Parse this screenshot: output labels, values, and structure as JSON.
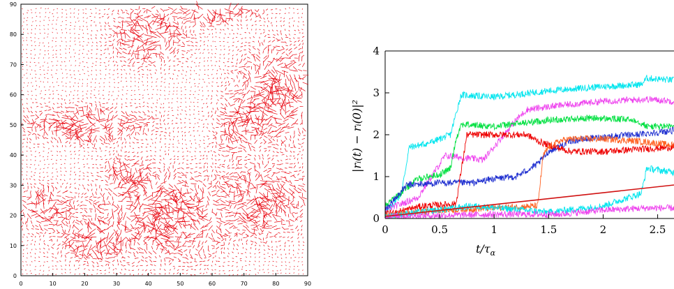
{
  "chart_data": [
    {
      "type": "scatter",
      "title": "",
      "xlabel": "",
      "ylabel": "",
      "xlim": [
        0,
        90
      ],
      "ylim": [
        0,
        90
      ],
      "xticks": [
        "0",
        "10",
        "20",
        "30",
        "40",
        "50",
        "60",
        "70",
        "80",
        "90"
      ],
      "yticks": [
        "0",
        "10",
        "20",
        "30",
        "40",
        "50",
        "60",
        "70",
        "80",
        "90"
      ],
      "color": "#e8000b",
      "description_visible": "vector field of short red arrows; long arrows cluster in bands around y≈45–55 (x 0–40), the upper-middle region (x 40–70, y 70–90), the right side (x 60–90, y 20–70) and the lower-middle region (x 15–75, y 0–35)"
    },
    {
      "type": "line",
      "title": "",
      "xlabel": "t/τ_α",
      "ylabel": "|r_i(t) − r_i(0)|²",
      "xlim": [
        0,
        2.65
      ],
      "ylim": [
        0,
        4
      ],
      "xticks": [
        "0",
        "0.5",
        "1",
        "1.5",
        "2",
        "2.5"
      ],
      "yticks": [
        "0",
        "1",
        "2",
        "3",
        "4"
      ],
      "series": [
        {
          "color": "#00e5ee",
          "x": [
            0,
            0.15,
            0.22,
            0.4,
            0.6,
            0.68,
            0.7,
            1.0,
            1.5,
            2.0,
            2.35,
            2.4,
            2.65
          ],
          "values": [
            0.1,
            0.6,
            1.7,
            1.8,
            2.0,
            2.8,
            2.95,
            2.9,
            3.05,
            3.15,
            3.2,
            3.35,
            3.3
          ]
        },
        {
          "color": "#ee44ee",
          "x": [
            0,
            0.3,
            0.55,
            0.9,
            1.2,
            1.3,
            1.6,
            2.0,
            2.4,
            2.65
          ],
          "values": [
            0.2,
            0.5,
            1.5,
            1.4,
            2.35,
            2.6,
            2.7,
            2.8,
            2.85,
            2.8
          ]
        },
        {
          "color": "#00e040",
          "x": [
            0,
            0.3,
            0.5,
            0.6,
            0.65,
            0.7,
            1.0,
            1.5,
            1.9,
            2.3,
            2.4,
            2.65
          ],
          "values": [
            0.3,
            0.95,
            1.05,
            1.2,
            1.9,
            2.25,
            2.2,
            2.35,
            2.4,
            2.35,
            2.2,
            2.2
          ]
        },
        {
          "color": "#2030d0",
          "x": [
            0,
            0.2,
            0.5,
            0.8,
            1.0,
            1.2,
            1.4,
            1.5,
            1.7,
            2.0,
            2.3,
            2.65
          ],
          "values": [
            0.2,
            0.8,
            0.85,
            0.85,
            0.95,
            1.0,
            1.3,
            1.6,
            1.85,
            1.95,
            2.0,
            2.1
          ]
        },
        {
          "color": "#ee0000",
          "x": [
            0,
            0.35,
            0.65,
            0.75,
            1.0,
            1.3,
            1.4,
            1.5,
            1.7,
            2.0,
            2.3,
            2.65
          ],
          "values": [
            0.1,
            0.3,
            0.35,
            2.0,
            2.0,
            2.0,
            1.85,
            1.75,
            1.6,
            1.6,
            1.65,
            1.7
          ]
        },
        {
          "color": "#ff6020",
          "x": [
            0,
            0.5,
            1.0,
            1.4,
            1.45,
            1.5,
            1.6,
            1.7,
            2.0,
            2.3,
            2.65
          ],
          "values": [
            0.05,
            0.2,
            0.25,
            0.3,
            1.5,
            1.7,
            1.85,
            1.9,
            1.9,
            1.85,
            1.75
          ]
        },
        {
          "color": "#00e5ee",
          "x": [
            0,
            0.8,
            1.5,
            2.0,
            2.35,
            2.4,
            2.65
          ],
          "values": [
            0.05,
            0.3,
            0.15,
            0.3,
            0.6,
            1.2,
            1.1
          ]
        },
        {
          "color": "#ee44ee",
          "x": [
            0,
            1.0,
            1.6,
            2.0,
            2.4,
            2.65
          ],
          "values": [
            0.05,
            0.1,
            0.1,
            0.2,
            0.25,
            0.25
          ]
        },
        {
          "color": "#d01010",
          "x": [
            0,
            2.65
          ],
          "values": [
            0.05,
            0.8
          ]
        }
      ]
    }
  ],
  "left_plot": {
    "xticks": [
      "0",
      "10",
      "20",
      "30",
      "40",
      "50",
      "60",
      "70",
      "80",
      "90"
    ],
    "yticks": [
      "0",
      "10",
      "20",
      "30",
      "40",
      "50",
      "60",
      "70",
      "80",
      "90"
    ]
  },
  "right_plot": {
    "xticks": [
      "0",
      "0.5",
      "1",
      "1.5",
      "2",
      "2.5"
    ],
    "yticks": [
      "0",
      "1",
      "2",
      "3",
      "4"
    ],
    "xlabel_main": "t/τ",
    "xlabel_sub": "α",
    "ylabel": "|r",
    "ylabel_text": "|rᵢ(t) − rᵢ(0)|²"
  }
}
